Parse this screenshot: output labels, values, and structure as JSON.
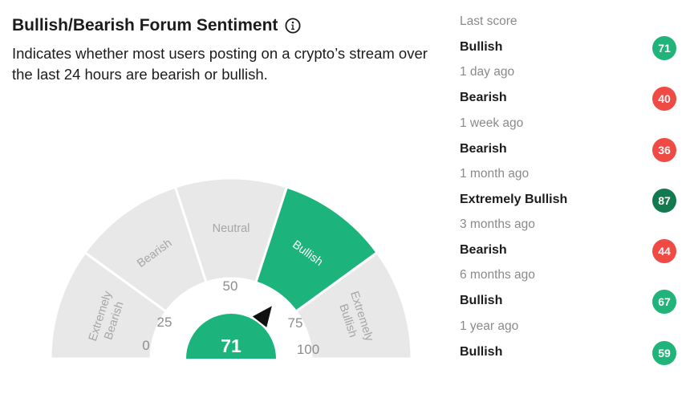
{
  "header": {
    "title": "Bullish/Bearish Forum Sentiment",
    "description": "Indicates whether most users posting on a crypto’s stream over the last 24 hours are bearish or bullish."
  },
  "gauge": {
    "score": 71,
    "score_text": "71",
    "active_segment": "Bullish",
    "segments": [
      {
        "label_lines": [
          "Extremely",
          "Bearish"
        ],
        "active": false
      },
      {
        "label_lines": [
          "Bearish"
        ],
        "active": false
      },
      {
        "label_lines": [
          "Neutral"
        ],
        "active": false
      },
      {
        "label_lines": [
          "Bullish"
        ],
        "active": true
      },
      {
        "label_lines": [
          "Extremely",
          "Bullish"
        ],
        "active": false
      }
    ],
    "ticks": [
      "0",
      "25",
      "50",
      "75",
      "100"
    ],
    "colors": {
      "inactive": "#e8e8e8",
      "active": "#1db37d",
      "inactive_text": "#a6a6a6",
      "active_text": "#ffffff",
      "tick_text": "#8d8d8d",
      "needle": "#111111"
    }
  },
  "history": [
    {
      "time": "Last score",
      "label": "Bullish",
      "score": "71",
      "color": "#21b47a"
    },
    {
      "time": "1 day ago",
      "label": "Bearish",
      "score": "40",
      "color": "#f04a45"
    },
    {
      "time": "1 week ago",
      "label": "Bearish",
      "score": "36",
      "color": "#f04a45"
    },
    {
      "time": "1 month ago",
      "label": "Extremely Bullish",
      "score": "87",
      "color": "#137a4f"
    },
    {
      "time": "3 months ago",
      "label": "Bearish",
      "score": "44",
      "color": "#f04a45"
    },
    {
      "time": "6 months ago",
      "label": "Bullish",
      "score": "67",
      "color": "#21b47a"
    },
    {
      "time": "1 year ago",
      "label": "Bullish",
      "score": "59",
      "color": "#21b47a"
    }
  ]
}
